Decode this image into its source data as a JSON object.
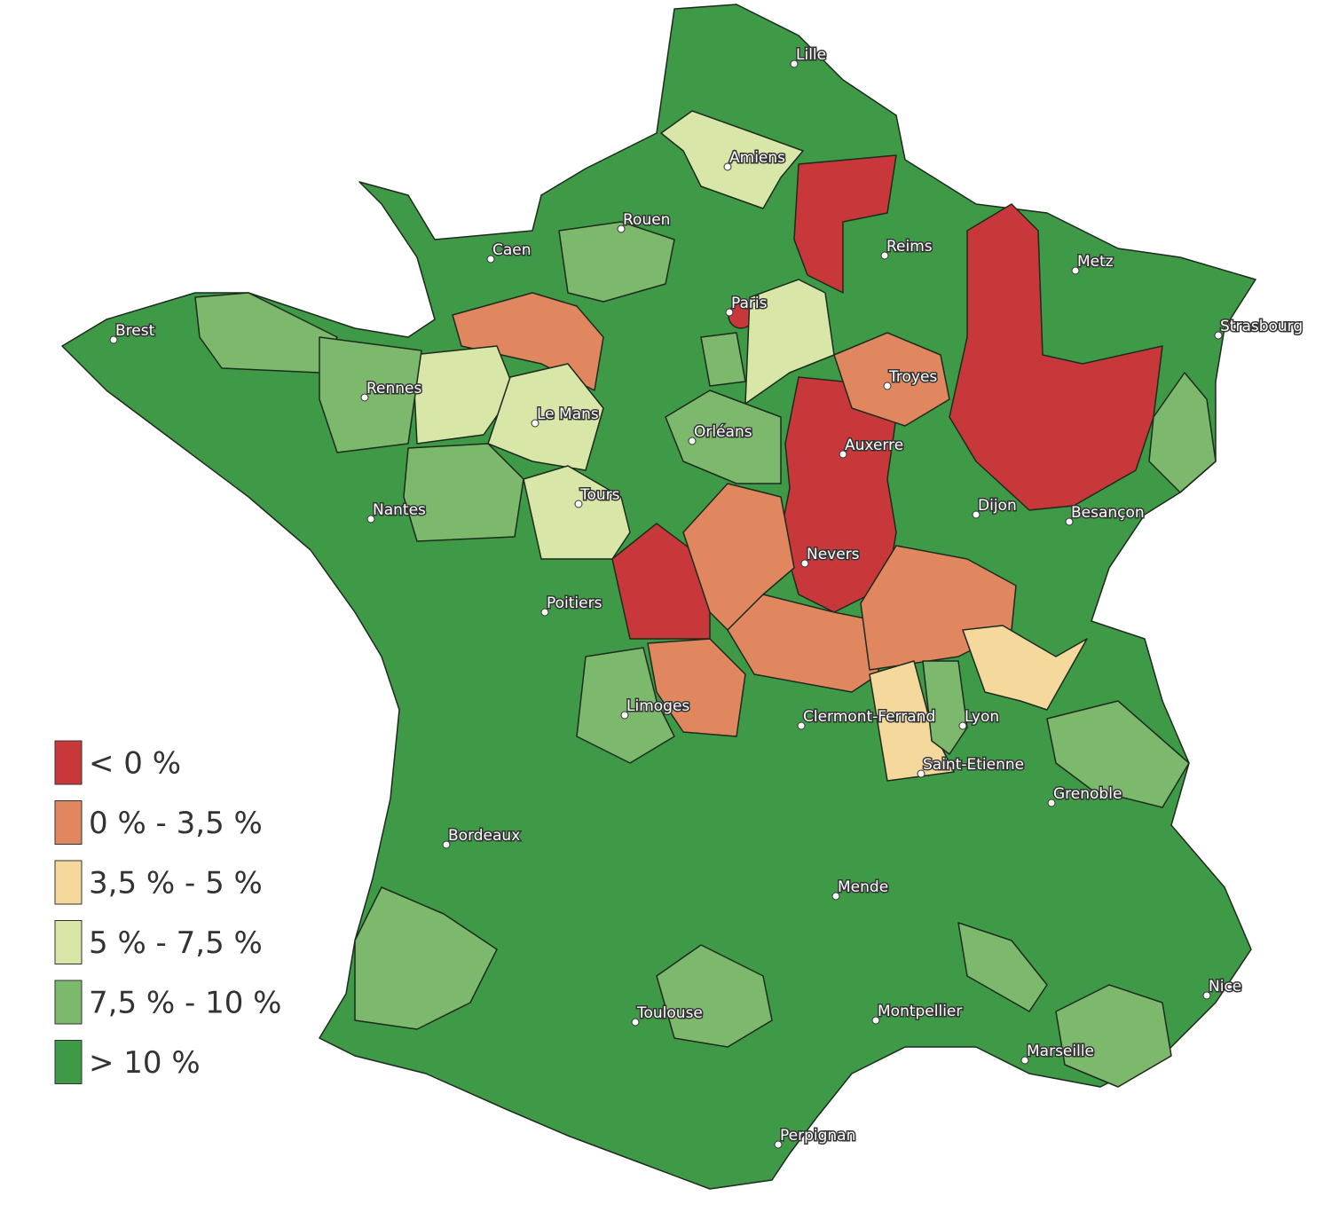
{
  "legend": {
    "items": [
      {
        "label": "< 0 %",
        "color": "#c8373a"
      },
      {
        "label": "0 % - 3,5 %",
        "color": "#e0875f"
      },
      {
        "label": "3,5 % - 5 %",
        "color": "#f5d89c"
      },
      {
        "label": "5 % - 7,5 %",
        "color": "#d8e6a8"
      },
      {
        "label": "7,5 % - 10 %",
        "color": "#7cb96c"
      },
      {
        "label": "> 10 %",
        "color": "#3f9a48"
      }
    ]
  },
  "cities": [
    "Lille",
    "Amiens",
    "Rouen",
    "Caen",
    "Paris",
    "Brest",
    "Reims",
    "Metz",
    "Strasbourg",
    "Rennes",
    "Le Mans",
    "Troyes",
    "Orléans",
    "Auxerre",
    "Tours",
    "Nantes",
    "Dijon",
    "Besançon",
    "Nevers",
    "Poitiers",
    "Limoges",
    "Clermont-Ferrand",
    "Lyon",
    "Saint-Etienne",
    "Grenoble",
    "Bordeaux",
    "Mende",
    "Nice",
    "Toulouse",
    "Montpellier",
    "Marseille",
    "Perpignan"
  ]
}
